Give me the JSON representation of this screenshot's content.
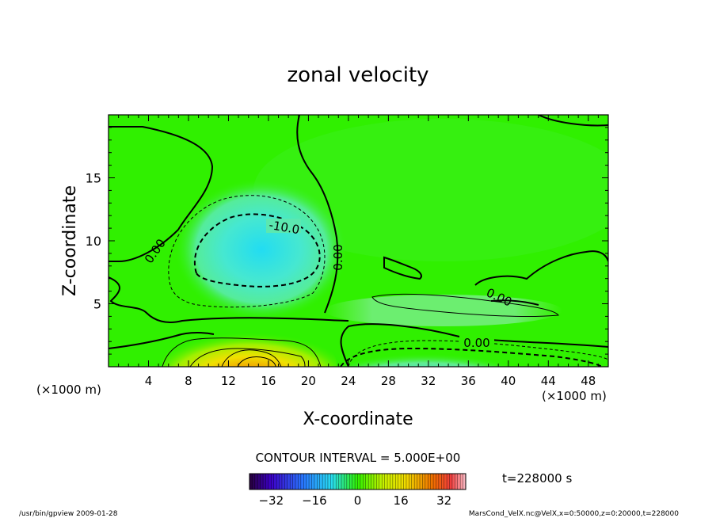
{
  "chart_data": {
    "type": "heatmap",
    "title": "zonal velocity",
    "xlabel": "X-coordinate",
    "ylabel": "Z-coordinate",
    "x_unit_left": "(×1000 m)",
    "x_unit_right": "(×1000 m)",
    "x_ticks": [
      "4",
      "8",
      "12",
      "16",
      "20",
      "24",
      "28",
      "32",
      "36",
      "40",
      "44",
      "48"
    ],
    "y_ticks": [
      "5",
      "10",
      "15"
    ],
    "xlim": [
      0,
      50
    ],
    "ylim": [
      0,
      20
    ],
    "contour_interval_label": "CONTOUR INTERVAL = 5.000E+00",
    "time_label": "t=228000 s",
    "contour_labels": [
      "-10.0",
      "0.00",
      "0.00",
      "0.00",
      "0.00"
    ],
    "colorbar_ticks": [
      "−32",
      "−16",
      "0",
      "16",
      "32"
    ],
    "colorbar_range": [
      -40,
      40
    ],
    "features": [
      {
        "kind": "min",
        "x": 16.5,
        "z": 9.0,
        "value": -12
      },
      {
        "kind": "max",
        "x": 15.5,
        "z": 0.5,
        "value": 18
      },
      {
        "kind": "min",
        "x": 31.0,
        "z": 0.5,
        "value": -10
      }
    ]
  },
  "footer": {
    "left": "/usr/bin/gpview   2009-01-28",
    "right": "MarsCond_VelX.nc@VelX,x=0:50000,z=0:20000,t=228000"
  }
}
